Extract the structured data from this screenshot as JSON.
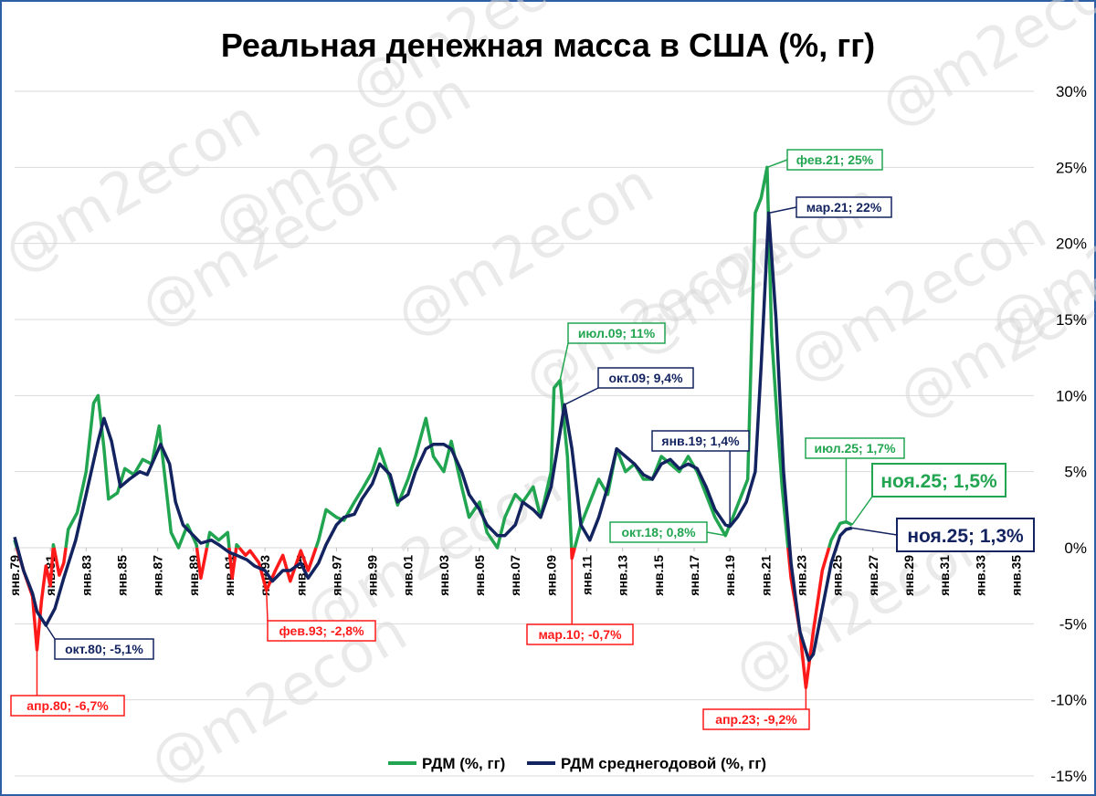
{
  "chart_data": {
    "type": "line",
    "title": "Реальная денежная масса в США (%, гг)",
    "watermark": "@m2econ",
    "y_axis": {
      "position": "right",
      "ylim": [
        -15,
        30
      ],
      "ticks": [
        30,
        25,
        20,
        15,
        10,
        5,
        0,
        -5,
        -10,
        -15
      ],
      "tick_labels": [
        "30%",
        "25%",
        "20%",
        "15%",
        "10%",
        "5%",
        "0%",
        "-5%",
        "-10%",
        "-15%"
      ]
    },
    "x_axis": {
      "xlim": [
        "1979-01",
        "2036-01"
      ],
      "ticks": [
        1979,
        1981,
        1983,
        1985,
        1987,
        1989,
        1991,
        1993,
        1995,
        1997,
        1999,
        2001,
        2003,
        2005,
        2007,
        2009,
        2011,
        2013,
        2015,
        2017,
        2019,
        2021,
        2023,
        2025,
        2027,
        2029,
        2031,
        2033,
        2035
      ],
      "tick_labels": [
        "янв.79",
        "янв.81",
        "янв.83",
        "янв.85",
        "янв.87",
        "янв.89",
        "янв.91",
        "янв.93",
        "янв.95",
        "янв.97",
        "янв.99",
        "янв.01",
        "янв.03",
        "янв.05",
        "янв.07",
        "янв.09",
        "янв.11",
        "янв.13",
        "янв.15",
        "янв.17",
        "янв.19",
        "янв.21",
        "янв.23",
        "янв.25",
        "янв.27",
        "янв.29",
        "янв.31",
        "янв.33",
        "янв.35"
      ]
    },
    "grid": "horizontal",
    "legend_position": "bottom",
    "colors": {
      "positive": "#21a550",
      "negative": "#ff1a1a",
      "average": "#12235f"
    },
    "series": [
      {
        "name": "РДМ (%, гг)",
        "points": [
          [
            "1979-01",
            0.5
          ],
          [
            "1979-07",
            -1.5
          ],
          [
            "1980-01",
            -3.2
          ],
          [
            "1980-04",
            -6.7
          ],
          [
            "1980-07",
            -3.5
          ],
          [
            "1980-10",
            -1.2
          ],
          [
            "1981-01",
            -2.5
          ],
          [
            "1981-03",
            0.2
          ],
          [
            "1981-07",
            -1.8
          ],
          [
            "1981-10",
            -1.0
          ],
          [
            "1982-01",
            1.2
          ],
          [
            "1982-07",
            2.3
          ],
          [
            "1983-01",
            5.0
          ],
          [
            "1983-06",
            9.5
          ],
          [
            "1983-09",
            10.0
          ],
          [
            "1984-01",
            6.5
          ],
          [
            "1984-04",
            3.2
          ],
          [
            "1984-10",
            3.6
          ],
          [
            "1985-03",
            5.2
          ],
          [
            "1985-09",
            4.8
          ],
          [
            "1986-03",
            5.8
          ],
          [
            "1986-09",
            5.5
          ],
          [
            "1987-02",
            8.0
          ],
          [
            "1987-06",
            4.5
          ],
          [
            "1987-10",
            1.0
          ],
          [
            "1988-03",
            0.0
          ],
          [
            "1988-09",
            1.5
          ],
          [
            "1989-03",
            0.2
          ],
          [
            "1989-06",
            -2.0
          ],
          [
            "1989-12",
            1.0
          ],
          [
            "1990-06",
            0.5
          ],
          [
            "1990-12",
            1.0
          ],
          [
            "1991-03",
            -2.0
          ],
          [
            "1991-06",
            0.2
          ],
          [
            "1991-12",
            -0.5
          ],
          [
            "1992-03",
            -0.2
          ],
          [
            "1992-09",
            -1.0
          ],
          [
            "1993-02",
            -2.8
          ],
          [
            "1993-08",
            -1.5
          ],
          [
            "1994-01",
            -0.5
          ],
          [
            "1994-06",
            -2.2
          ],
          [
            "1995-01",
            -0.2
          ],
          [
            "1995-06",
            -1.5
          ],
          [
            "1996-01",
            0.5
          ],
          [
            "1996-06",
            2.5
          ],
          [
            "1997-01",
            2.0
          ],
          [
            "1997-06",
            1.8
          ],
          [
            "1998-01",
            3.0
          ],
          [
            "1998-06",
            3.8
          ],
          [
            "1999-01",
            5.0
          ],
          [
            "1999-06",
            6.5
          ],
          [
            "2000-01",
            4.5
          ],
          [
            "2000-06",
            2.8
          ],
          [
            "2001-01",
            4.5
          ],
          [
            "2001-06",
            6.0
          ],
          [
            "2002-01",
            8.5
          ],
          [
            "2002-06",
            6.0
          ],
          [
            "2003-01",
            5.0
          ],
          [
            "2003-06",
            7.0
          ],
          [
            "2004-01",
            4.0
          ],
          [
            "2004-06",
            2.0
          ],
          [
            "2005-01",
            3.0
          ],
          [
            "2005-06",
            1.0
          ],
          [
            "2006-01",
            0.0
          ],
          [
            "2006-06",
            2.0
          ],
          [
            "2007-01",
            3.5
          ],
          [
            "2007-06",
            3.0
          ],
          [
            "2008-01",
            4.0
          ],
          [
            "2008-06",
            2.0
          ],
          [
            "2009-01",
            5.0
          ],
          [
            "2009-03",
            10.5
          ],
          [
            "2009-07",
            11.0
          ],
          [
            "2009-12",
            6.0
          ],
          [
            "2010-03",
            -0.7
          ],
          [
            "2010-09",
            1.5
          ],
          [
            "2011-03",
            3.0
          ],
          [
            "2011-09",
            4.5
          ],
          [
            "2012-03",
            3.5
          ],
          [
            "2012-09",
            6.5
          ],
          [
            "2013-03",
            5.0
          ],
          [
            "2013-09",
            5.5
          ],
          [
            "2014-03",
            4.5
          ],
          [
            "2014-09",
            4.5
          ],
          [
            "2015-03",
            6.0
          ],
          [
            "2015-09",
            5.5
          ],
          [
            "2016-03",
            5.0
          ],
          [
            "2016-09",
            6.0
          ],
          [
            "2017-03",
            5.0
          ],
          [
            "2017-09",
            3.5
          ],
          [
            "2018-03",
            2.0
          ],
          [
            "2018-10",
            0.8
          ],
          [
            "2019-03",
            2.0
          ],
          [
            "2019-09",
            3.5
          ],
          [
            "2020-01",
            4.5
          ],
          [
            "2020-06",
            22.0
          ],
          [
            "2020-10",
            23.0
          ],
          [
            "2021-02",
            25.0
          ],
          [
            "2021-05",
            14.0
          ],
          [
            "2021-09",
            8.0
          ],
          [
            "2021-12",
            4.0
          ],
          [
            "2022-06",
            -2.0
          ],
          [
            "2022-12",
            -5.5
          ],
          [
            "2023-04",
            -9.2
          ],
          [
            "2023-09",
            -5.5
          ],
          [
            "2024-03",
            -1.5
          ],
          [
            "2024-09",
            0.5
          ],
          [
            "2025-03",
            1.6
          ],
          [
            "2025-07",
            1.7
          ],
          [
            "2025-11",
            1.5
          ]
        ]
      },
      {
        "name": "РДМ среднегодовой (%, гг)",
        "points": [
          [
            "1979-01",
            0.7
          ],
          [
            "1979-07",
            -1.5
          ],
          [
            "1980-01",
            -3.0
          ],
          [
            "1980-04",
            -4.2
          ],
          [
            "1980-10",
            -5.1
          ],
          [
            "1981-04",
            -4.0
          ],
          [
            "1981-10",
            -2.0
          ],
          [
            "1982-06",
            0.5
          ],
          [
            "1983-01",
            3.5
          ],
          [
            "1983-09",
            7.0
          ],
          [
            "1984-01",
            8.5
          ],
          [
            "1984-06",
            7.0
          ],
          [
            "1984-12",
            4.0
          ],
          [
            "1985-06",
            4.5
          ],
          [
            "1986-01",
            5.0
          ],
          [
            "1986-06",
            4.8
          ],
          [
            "1987-03",
            6.8
          ],
          [
            "1987-09",
            5.5
          ],
          [
            "1988-01",
            3.0
          ],
          [
            "1988-06",
            1.5
          ],
          [
            "1989-01",
            0.8
          ],
          [
            "1989-06",
            0.3
          ],
          [
            "1990-01",
            0.5
          ],
          [
            "1990-06",
            0.2
          ],
          [
            "1991-01",
            -0.3
          ],
          [
            "1991-06",
            -0.5
          ],
          [
            "1992-01",
            -0.8
          ],
          [
            "1992-06",
            -1.2
          ],
          [
            "1993-01",
            -1.5
          ],
          [
            "1993-06",
            -2.2
          ],
          [
            "1994-01",
            -1.5
          ],
          [
            "1994-06",
            -1.5
          ],
          [
            "1995-01",
            -1.0
          ],
          [
            "1995-06",
            -2.0
          ],
          [
            "1996-01",
            -1.0
          ],
          [
            "1996-06",
            0.2
          ],
          [
            "1997-01",
            1.5
          ],
          [
            "1997-06",
            2.0
          ],
          [
            "1998-01",
            2.2
          ],
          [
            "1998-06",
            3.2
          ],
          [
            "1999-01",
            4.2
          ],
          [
            "1999-06",
            5.5
          ],
          [
            "2000-01",
            4.8
          ],
          [
            "2000-06",
            3.0
          ],
          [
            "2001-01",
            3.5
          ],
          [
            "2001-06",
            5.0
          ],
          [
            "2002-01",
            6.5
          ],
          [
            "2002-06",
            6.8
          ],
          [
            "2003-01",
            6.8
          ],
          [
            "2003-06",
            6.5
          ],
          [
            "2004-01",
            5.0
          ],
          [
            "2004-06",
            3.5
          ],
          [
            "2005-01",
            2.5
          ],
          [
            "2005-06",
            1.5
          ],
          [
            "2006-01",
            0.8
          ],
          [
            "2006-06",
            0.8
          ],
          [
            "2007-01",
            1.5
          ],
          [
            "2007-06",
            3.0
          ],
          [
            "2008-01",
            2.5
          ],
          [
            "2008-06",
            2.0
          ],
          [
            "2009-01",
            4.0
          ],
          [
            "2009-10",
            9.4
          ],
          [
            "2010-03",
            6.5
          ],
          [
            "2010-09",
            1.5
          ],
          [
            "2011-03",
            0.5
          ],
          [
            "2011-09",
            2.0
          ],
          [
            "2012-03",
            4.0
          ],
          [
            "2012-09",
            6.5
          ],
          [
            "2013-03",
            6.0
          ],
          [
            "2013-09",
            5.5
          ],
          [
            "2014-03",
            4.8
          ],
          [
            "2014-09",
            4.5
          ],
          [
            "2015-03",
            5.5
          ],
          [
            "2015-09",
            5.8
          ],
          [
            "2016-03",
            5.2
          ],
          [
            "2016-09",
            5.5
          ],
          [
            "2017-03",
            5.2
          ],
          [
            "2017-09",
            4.0
          ],
          [
            "2018-03",
            2.5
          ],
          [
            "2018-10",
            1.5
          ],
          [
            "2019-01",
            1.4
          ],
          [
            "2019-06",
            2.0
          ],
          [
            "2019-12",
            3.0
          ],
          [
            "2020-06",
            5.0
          ],
          [
            "2020-10",
            12.0
          ],
          [
            "2021-03",
            22.0
          ],
          [
            "2021-08",
            15.0
          ],
          [
            "2022-01",
            5.0
          ],
          [
            "2022-06",
            -1.0
          ],
          [
            "2022-12",
            -5.5
          ],
          [
            "2023-06",
            -7.4
          ],
          [
            "2023-09",
            -7.0
          ],
          [
            "2024-03",
            -4.0
          ],
          [
            "2024-09",
            -1.0
          ],
          [
            "2025-03",
            0.8
          ],
          [
            "2025-07",
            1.2
          ],
          [
            "2025-11",
            1.3
          ]
        ]
      }
    ],
    "annotations": [
      {
        "label": "апр.80; -6,7%",
        "series": 0,
        "x": "1980-04",
        "y": -6.7,
        "color": "#ff1a1a",
        "size": "small"
      },
      {
        "label": "окт.80; -5,1%",
        "series": 1,
        "x": "1980-10",
        "y": -5.1,
        "color": "#12235f",
        "size": "small"
      },
      {
        "label": "фев.93; -2,8%",
        "series": 0,
        "x": "1993-02",
        "y": -2.8,
        "color": "#ff1a1a",
        "size": "small"
      },
      {
        "label": "июл.09; 11%",
        "series": 0,
        "x": "2009-07",
        "y": 11.0,
        "color": "#21a550",
        "size": "small"
      },
      {
        "label": "окт.09; 9,4%",
        "series": 1,
        "x": "2009-10",
        "y": 9.4,
        "color": "#12235f",
        "size": "small"
      },
      {
        "label": "мар.10; -0,7%",
        "series": 0,
        "x": "2010-03",
        "y": -0.7,
        "color": "#ff1a1a",
        "size": "small"
      },
      {
        "label": "янв.19; 1,4%",
        "series": 1,
        "x": "2019-01",
        "y": 1.4,
        "color": "#12235f",
        "size": "small"
      },
      {
        "label": "окт.18; 0,8%",
        "series": 0,
        "x": "2018-10",
        "y": 0.8,
        "color": "#21a550",
        "size": "small"
      },
      {
        "label": "фев.21; 25%",
        "series": 0,
        "x": "2021-02",
        "y": 25.0,
        "color": "#21a550",
        "size": "small"
      },
      {
        "label": "мар.21; 22%",
        "series": 1,
        "x": "2021-03",
        "y": 22.0,
        "color": "#12235f",
        "size": "small"
      },
      {
        "label": "апр.23; -9,2%",
        "series": 0,
        "x": "2023-04",
        "y": -9.2,
        "color": "#ff1a1a",
        "size": "small"
      },
      {
        "label": "июл.25; 1,7%",
        "series": 0,
        "x": "2025-07",
        "y": 1.7,
        "color": "#21a550",
        "size": "small"
      },
      {
        "label": "ноя.25; 1,5%",
        "series": 0,
        "x": "2025-11",
        "y": 1.5,
        "color": "#21a550",
        "size": "large"
      },
      {
        "label": "ноя.25; 1,3%",
        "series": 1,
        "x": "2025-11",
        "y": 1.3,
        "color": "#12235f",
        "size": "large"
      }
    ],
    "legend": [
      "РДМ (%, гг)",
      "РДМ среднегодовой (%, гг)"
    ]
  }
}
